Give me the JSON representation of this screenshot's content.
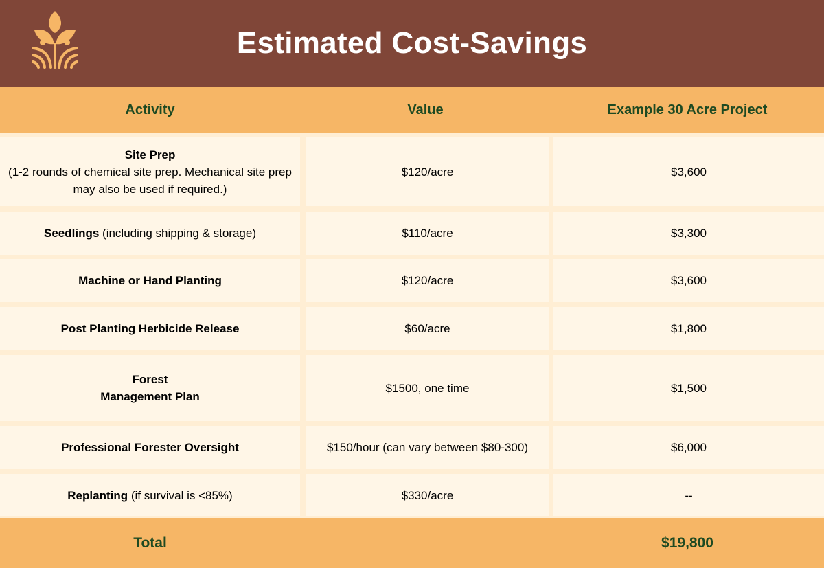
{
  "header": {
    "title": "Estimated Cost-Savings",
    "logo_icon": "sprout-field-logo-icon"
  },
  "colors": {
    "header_bg": "#804638",
    "accent_orange": "#f6b666",
    "row_bg": "#fff6e7",
    "header_text_green": "#1e4a22"
  },
  "table": {
    "columns": [
      "Activity",
      "Value",
      "Example 30 Acre Project"
    ],
    "rows": [
      {
        "activity_bold": "Site Prep",
        "activity_note": "(1-2 rounds of chemical site prep. Mechanical site prep may also be used if required.)",
        "value": "$120/acre",
        "example": "$3,600"
      },
      {
        "activity_bold": "Seedlings",
        "activity_note": "(including shipping & storage)",
        "value": "$110/acre",
        "example": "$3,300"
      },
      {
        "activity_bold": "Machine or Hand Planting",
        "activity_note": "",
        "value": "$120/acre",
        "example": "$3,600"
      },
      {
        "activity_bold": "Post Planting Herbicide Release",
        "activity_note": "",
        "value": "$60/acre",
        "example": "$1,800"
      },
      {
        "activity_bold": "Forest",
        "activity_bold_2": "Management Plan",
        "activity_note": "",
        "value": "$1500, one time",
        "example": "$1,500"
      },
      {
        "activity_bold": "Professional Forester Oversight",
        "activity_note": "",
        "value": "$150/hour (can vary between $80-300)",
        "example": "$6,000"
      },
      {
        "activity_bold": "Replanting",
        "activity_note": "(if survival is <85%)",
        "value": "$330/acre",
        "example": "--"
      }
    ],
    "total_label": "Total",
    "total_value": "$19,800"
  }
}
